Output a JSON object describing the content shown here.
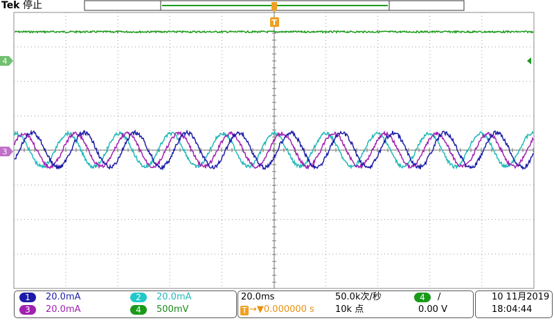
{
  "header": {
    "brand": "Tek",
    "status": "停止",
    "trigger_marker": "T"
  },
  "channel_markers": {
    "ch4": "4",
    "ch3": "3"
  },
  "channels": [
    {
      "number": "1",
      "scale": "20.0mA"
    },
    {
      "number": "2",
      "scale": "20.0mA"
    },
    {
      "number": "3",
      "scale": "20.0mA"
    },
    {
      "number": "4",
      "scale": "500mV"
    }
  ],
  "timebase": {
    "scale": "20.0ms",
    "trigger_position": "→▼0.000000 s",
    "sample_rate": "50.0k次/秒",
    "record_length": "10k 点"
  },
  "trigger": {
    "source": "4",
    "slope": "/",
    "level": "0.00 V"
  },
  "datetime": {
    "date": "10 11月2019",
    "time": "18:04:44"
  }
}
